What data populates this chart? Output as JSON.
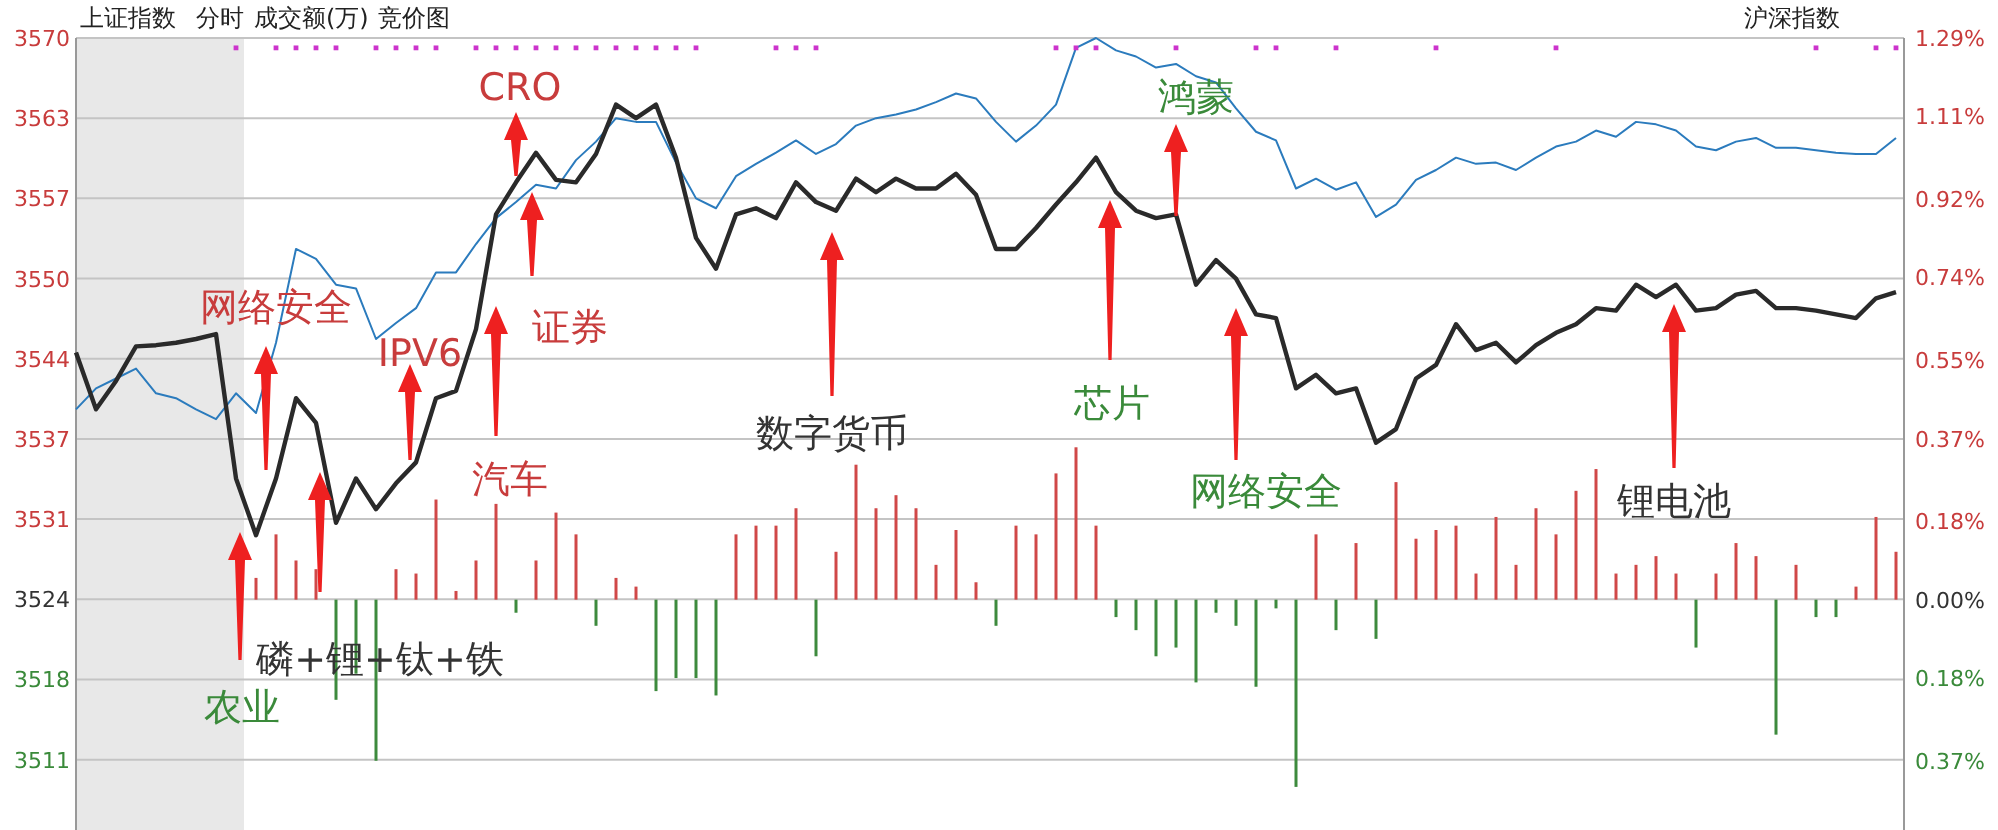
{
  "chart_data": {
    "type": "line",
    "title": "上证指数",
    "categories": [
      null,
      null,
      null,
      null,
      null,
      null,
      null,
      null,
      null,
      null,
      null,
      null,
      null,
      null,
      null,
      null,
      null,
      null,
      null,
      null,
      null,
      null,
      null,
      null,
      null,
      null,
      null,
      null,
      null,
      null,
      null,
      null,
      null,
      null,
      null,
      null,
      null,
      null,
      null,
      null,
      null,
      null,
      null,
      null,
      null,
      null,
      null,
      null,
      null,
      null,
      null,
      null,
      null,
      null,
      null,
      null,
      null,
      null,
      null,
      null,
      null,
      null,
      null,
      null,
      null,
      null,
      null,
      null,
      null,
      null,
      null,
      null,
      null,
      null,
      null,
      null,
      null,
      null,
      null,
      null,
      null,
      null,
      null,
      null,
      null,
      null,
      null,
      null,
      null,
      null,
      null,
      null
    ],
    "series": [
      {
        "color": "#2b7bbd",
        "values": [
          3539.4,
          3541.1,
          3541.9,
          3542.7,
          3540.7,
          3540.3,
          3539.4,
          3538.6,
          3540.7,
          3539.1,
          3544.8,
          3552.4,
          3551.6,
          3549.5,
          3549.2,
          3545.1,
          3546.4,
          3547.6,
          3550.5,
          3550.5,
          3552.8,
          3554.9,
          3556.2,
          3557.6,
          3557.3,
          3559.6,
          3561.1,
          3563.0,
          3562.7,
          3562.7,
          3559.4,
          3556.5,
          3555.7,
          3558.3,
          3559.3,
          3560.2,
          3561.2,
          3560.1,
          3560.9,
          3562.4,
          3563.0,
          3563.3,
          3563.7,
          3564.3,
          3565.0,
          3564.6,
          3562.7,
          3561.1,
          3562.4,
          3564.1,
          3568.7,
          3569.5,
          3568.5,
          3568.0,
          3567.1,
          3567.4,
          3566.4,
          3565.9,
          3563.8,
          3561.9,
          3561.2,
          3557.3,
          3558.1,
          3557.2,
          3557.8,
          3555.0,
          3556.0,
          3558.0,
          3558.8,
          3559.8,
          3559.3,
          3559.4,
          3558.8,
          3559.8,
          3560.7,
          3561.1,
          3562.0,
          3561.5,
          3562.7,
          3562.5,
          3562.0,
          3560.7,
          3560.4,
          3561.1,
          3561.4,
          3560.6,
          3560.6,
          3560.4,
          3560.2,
          3560.1,
          3560.1,
          3561.4
        ]
      },
      {
        "color": "#2a2a2a",
        "values": [
          3544.0,
          3539.4,
          3541.7,
          3544.5,
          3544.6,
          3544.8,
          3545.1,
          3545.5,
          3533.8,
          3529.2,
          3533.8,
          3540.3,
          3538.3,
          3530.2,
          3533.8,
          3531.3,
          3533.4,
          3535.1,
          3540.3,
          3540.9,
          3545.9,
          3555.2,
          3557.8,
          3560.2,
          3558.0,
          3557.8,
          3560.1,
          3564.1,
          3563.0,
          3564.1,
          3559.8,
          3553.3,
          3550.8,
          3555.2,
          3555.7,
          3554.9,
          3557.8,
          3556.2,
          3555.5,
          3558.1,
          3557.0,
          3558.1,
          3557.3,
          3557.3,
          3558.5,
          3556.8,
          3552.4,
          3552.4,
          3554.1,
          3556.0,
          3557.8,
          3559.8,
          3557.0,
          3555.5,
          3554.9,
          3555.2,
          3549.5,
          3551.5,
          3550.0,
          3547.1,
          3546.8,
          3541.1,
          3542.2,
          3540.7,
          3541.1,
          3536.7,
          3537.8,
          3541.9,
          3543.0,
          3546.3,
          3544.2,
          3544.8,
          3543.2,
          3544.6,
          3545.6,
          3546.3,
          3547.6,
          3547.4,
          3549.5,
          3548.5,
          3549.5,
          3547.4,
          3547.6,
          3548.7,
          3549.0,
          3547.6,
          3547.6,
          3547.4,
          3547.1,
          3546.8,
          3548.4,
          3548.9
        ]
      },
      {
        "type": "bar",
        "axis": "y2",
        "color": "#d04848",
        "values": [
          null,
          null,
          null,
          null,
          null,
          null,
          null,
          null,
          null,
          0.05,
          0.15,
          0.09,
          0.07,
          null,
          null,
          null,
          0.07,
          0.06,
          0.23,
          0.02,
          0.09,
          0.22,
          null,
          0.09,
          0.2,
          0.15,
          null,
          0.05,
          0.03,
          null,
          null,
          null,
          null,
          0.15,
          0.17,
          0.17,
          0.21,
          null,
          0.11,
          0.31,
          0.21,
          0.24,
          0.21,
          0.08,
          0.16,
          0.04,
          null,
          0.17,
          0.15,
          0.29,
          0.35,
          0.17,
          null,
          null,
          null,
          null,
          null,
          null,
          null,
          null,
          null,
          null,
          0.15,
          null,
          0.13,
          null,
          0.27,
          0.14,
          0.16,
          0.17,
          0.06,
          0.19,
          0.08,
          0.21,
          0.15,
          0.25,
          0.3,
          0.06,
          0.08,
          0.1,
          0.06,
          null,
          0.06,
          0.13,
          0.1,
          null,
          0.08,
          null,
          null,
          0.03,
          0.19,
          0.11
        ]
      },
      {
        "type": "bar",
        "axis": "y2",
        "color": "#3d8a3d",
        "values": [
          null,
          null,
          null,
          null,
          null,
          null,
          null,
          null,
          null,
          null,
          null,
          null,
          null,
          -0.23,
          -0.17,
          -0.37,
          null,
          null,
          null,
          null,
          null,
          null,
          -0.03,
          null,
          null,
          null,
          -0.06,
          null,
          null,
          -0.21,
          -0.18,
          -0.18,
          -0.22,
          null,
          null,
          null,
          null,
          -0.13,
          null,
          null,
          null,
          null,
          null,
          null,
          null,
          null,
          -0.06,
          null,
          null,
          null,
          null,
          null,
          -0.04,
          -0.07,
          -0.13,
          -0.11,
          -0.19,
          -0.03,
          -0.06,
          -0.2,
          -0.02,
          -0.43,
          null,
          -0.07,
          null,
          -0.09,
          null,
          null,
          null,
          null,
          null,
          null,
          null,
          null,
          null,
          null,
          null,
          null,
          null,
          null,
          null,
          -0.11,
          null,
          null,
          null,
          -0.31,
          null,
          -0.04,
          -0.04,
          null,
          null,
          null
        ]
      },
      {
        "type": "scatter",
        "marker": "square",
        "color": "#cc33cc",
        "values": [
          null,
          null,
          null,
          null,
          null,
          null,
          null,
          null,
          3568.7,
          null,
          3568.7,
          3568.7,
          3568.7,
          3568.7,
          null,
          3568.7,
          3568.7,
          3568.7,
          3568.7,
          null,
          3568.7,
          3568.7,
          3568.7,
          3568.7,
          3568.7,
          3568.7,
          3568.7,
          3568.7,
          3568.7,
          3568.7,
          3568.7,
          3568.7,
          null,
          null,
          null,
          3568.7,
          3568.7,
          3568.7,
          null,
          null,
          null,
          null,
          null,
          null,
          null,
          null,
          null,
          null,
          null,
          3568.7,
          3568.7,
          3568.7,
          null,
          null,
          null,
          3568.7,
          null,
          null,
          null,
          3568.7,
          3568.7,
          null,
          null,
          3568.7,
          null,
          null,
          null,
          null,
          3568.7,
          null,
          null,
          null,
          null,
          null,
          3568.7,
          null,
          null,
          null,
          null,
          null,
          null,
          null,
          null,
          null,
          null,
          null,
          null,
          3568.7,
          null,
          null,
          3568.7,
          3568.7
        ]
      }
    ],
    "ylim": [
      3505.3,
      3569.5
    ],
    "yticks": [
      {
        "value": 3569.5,
        "label": "3570"
      },
      {
        "value": 3563,
        "label": "3563"
      },
      {
        "value": 3556.5,
        "label": "3557"
      },
      {
        "value": 3550,
        "label": "3550"
      },
      {
        "value": 3543.5,
        "label": "3544"
      },
      {
        "value": 3537,
        "label": "3537"
      },
      {
        "value": 3530.5,
        "label": "3531"
      },
      {
        "value": 3524,
        "label": "3524"
      },
      {
        "value": 3517.5,
        "label": "3518"
      },
      {
        "value": 3511,
        "label": "3511"
      }
    ],
    "y2lim": [
      -0.529,
      1.29
    ],
    "y2ticks": [
      {
        "value": 1.29,
        "label": "1.29%"
      },
      {
        "value": 1.11,
        "label": "1.11%"
      },
      {
        "value": 0.92,
        "label": "0.92%"
      },
      {
        "value": 0.74,
        "label": "0.74%"
      },
      {
        "value": 0.55,
        "label": "0.55%"
      },
      {
        "value": 0.37,
        "label": "0.37%"
      },
      {
        "value": 0.18,
        "label": "0.18%"
      },
      {
        "value": 0,
        "label": "0.00%"
      },
      {
        "value": -0.18,
        "label": "0.18%"
      },
      {
        "value": -0.37,
        "label": "0.37%"
      }
    ],
    "grid": "y",
    "annotations": [
      "农业",
      "网络安全",
      "磷+锂+钛+铁",
      "IPV6",
      "汽车",
      "CRO",
      "证券",
      "数字货币",
      "芯片",
      "鸿蒙",
      "网络安全",
      "锂电池",
      "分时",
      "成交额(万)",
      "竞价图",
      "沪深指数"
    ]
  }
}
